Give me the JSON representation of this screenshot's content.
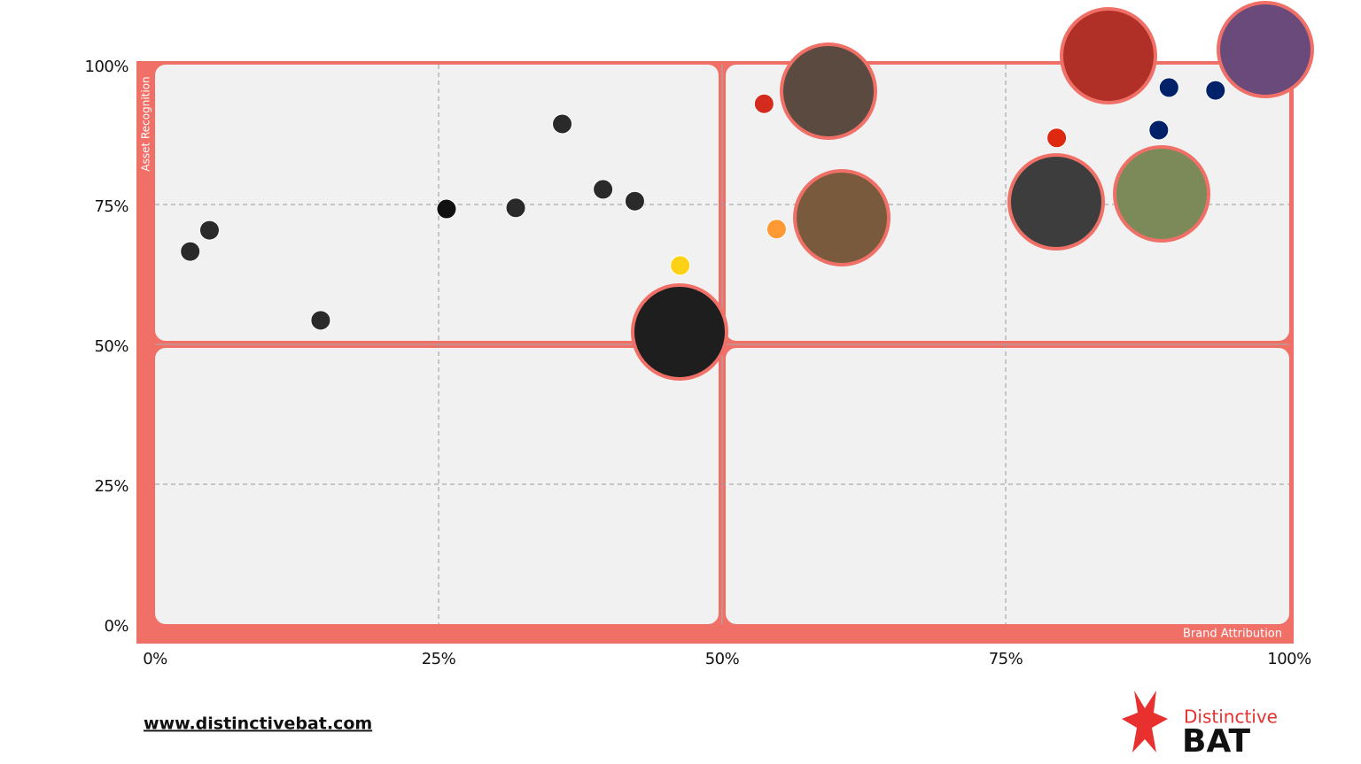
{
  "chart_data": {
    "type": "scatter",
    "x_label": "Brand Attribution",
    "y_label": "Asset Recognition",
    "x": [
      3.1,
      4.8,
      14.6,
      25.7,
      31.8,
      35.9,
      39.5,
      42.3,
      46.3,
      53.7,
      54.8,
      79.5,
      88.5,
      89.4,
      93.5
    ],
    "values": [
      66.6,
      70.4,
      54.3,
      74.2,
      74.4,
      89.4,
      77.7,
      75.6,
      64.1,
      93.0,
      70.6,
      86.9,
      88.3,
      95.9,
      95.4
    ],
    "colors": [
      "#2a2a2a",
      "#2a2a2a",
      "#2a2a2a",
      "#111111",
      "#2a2a2a",
      "#2a2a2a",
      "#2a2a2a",
      "#2a2a2a",
      "#fcd116",
      "#d52b1e",
      "#ff9933",
      "#de2910",
      "#012169",
      "#012169",
      "#012169"
    ],
    "xlim": [
      0,
      100
    ],
    "ylim": [
      0,
      100
    ],
    "xticks": [
      {
        "value": 0,
        "label": "0%"
      },
      {
        "value": 25,
        "label": "25%"
      },
      {
        "value": 50,
        "label": "50%"
      },
      {
        "value": 75,
        "label": "75%"
      },
      {
        "value": 100,
        "label": "100%"
      }
    ],
    "yticks": [
      {
        "value": 0,
        "label": "0%"
      },
      {
        "value": 25,
        "label": "25%"
      },
      {
        "value": 50,
        "label": "50%"
      },
      {
        "value": 75,
        "label": "75%"
      },
      {
        "value": 100,
        "label": "100%"
      }
    ],
    "grid": true
  },
  "footer": {
    "url": "www.distinctivebat.com"
  },
  "logo": {
    "line1": "Distinctive",
    "line2": "BAT"
  }
}
